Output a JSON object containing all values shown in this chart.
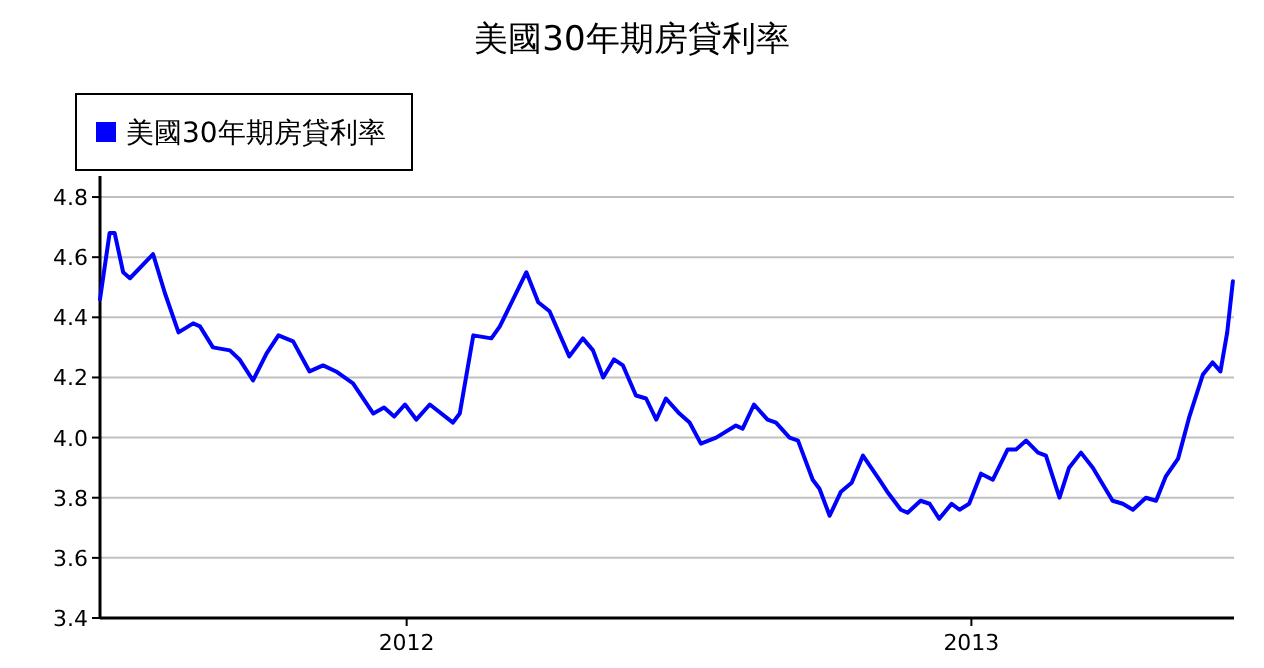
{
  "chart_data": {
    "type": "line",
    "title": "美國30年期房貸利率",
    "legend": "top left",
    "grid": "y",
    "marker": "none",
    "xlim": [
      2011.457,
      2013.465
    ],
    "xticks": [
      2012,
      2013
    ],
    "ylim": [
      3.4,
      4.87
    ],
    "yticks": [
      {
        "value": 3.4,
        "label": "3.4"
      },
      {
        "value": 3.6,
        "label": "3.6"
      },
      {
        "value": 3.8,
        "label": "3.8"
      },
      {
        "value": 4.0,
        "label": "4.0"
      },
      {
        "value": 4.2,
        "label": "4.2"
      },
      {
        "value": 4.4,
        "label": "4.4"
      },
      {
        "value": 4.6,
        "label": "4.6"
      },
      {
        "value": 4.8,
        "label": "4.8"
      }
    ],
    "x": [
      2011.457,
      2011.474,
      2011.483,
      2011.498,
      2011.51,
      2011.551,
      2011.572,
      2011.596,
      2011.622,
      2011.634,
      2011.657,
      2011.687,
      2011.704,
      2011.728,
      2011.752,
      2011.773,
      2011.799,
      2011.828,
      2011.852,
      2011.875,
      2011.905,
      2011.941,
      2011.96,
      2011.978,
      2011.997,
      2012.017,
      2012.041,
      2012.082,
      2012.094,
      2012.118,
      2012.15,
      2012.165,
      2012.212,
      2012.233,
      2012.253,
      2012.288,
      2012.312,
      2012.33,
      2012.348,
      2012.367,
      2012.383,
      2012.406,
      2012.424,
      2012.442,
      2012.459,
      2012.483,
      2012.501,
      2012.521,
      2012.548,
      2012.583,
      2012.595,
      2012.615,
      2012.639,
      2012.654,
      2012.678,
      2012.693,
      2012.719,
      2012.731,
      2012.749,
      2012.769,
      2012.788,
      2012.808,
      2012.837,
      2012.851,
      2012.875,
      2012.887,
      2012.91,
      2012.926,
      2012.943,
      2012.965,
      2012.979,
      2012.996,
      2013.017,
      2013.038,
      2013.064,
      2013.079,
      2013.097,
      2013.118,
      2013.132,
      2013.156,
      2013.173,
      2013.194,
      2013.215,
      2013.25,
      2013.268,
      2013.286,
      2013.309,
      2013.327,
      2013.344,
      2013.366,
      2013.386,
      2013.41,
      2013.427,
      2013.441,
      2013.453,
      2013.463
    ],
    "series": [
      {
        "name": "美國30年期房貸利率",
        "color": "#0000ff",
        "values": [
          4.46,
          4.68,
          4.68,
          4.55,
          4.53,
          4.61,
          4.48,
          4.35,
          4.38,
          4.37,
          4.3,
          4.29,
          4.26,
          4.19,
          4.28,
          4.34,
          4.32,
          4.22,
          4.24,
          4.22,
          4.18,
          4.08,
          4.1,
          4.07,
          4.11,
          4.06,
          4.11,
          4.05,
          4.08,
          4.34,
          4.33,
          4.37,
          4.55,
          4.45,
          4.42,
          4.27,
          4.33,
          4.29,
          4.2,
          4.26,
          4.24,
          4.14,
          4.13,
          4.06,
          4.13,
          4.08,
          4.05,
          3.98,
          4.0,
          4.04,
          4.03,
          4.11,
          4.06,
          4.05,
          4.0,
          3.99,
          3.86,
          3.83,
          3.74,
          3.82,
          3.85,
          3.94,
          3.86,
          3.82,
          3.76,
          3.75,
          3.79,
          3.78,
          3.73,
          3.78,
          3.76,
          3.78,
          3.88,
          3.86,
          3.96,
          3.96,
          3.99,
          3.95,
          3.94,
          3.8,
          3.9,
          3.95,
          3.9,
          3.79,
          3.78,
          3.76,
          3.8,
          3.79,
          3.87,
          3.93,
          4.07,
          4.21,
          4.25,
          4.22,
          4.35,
          4.52
        ]
      }
    ]
  }
}
